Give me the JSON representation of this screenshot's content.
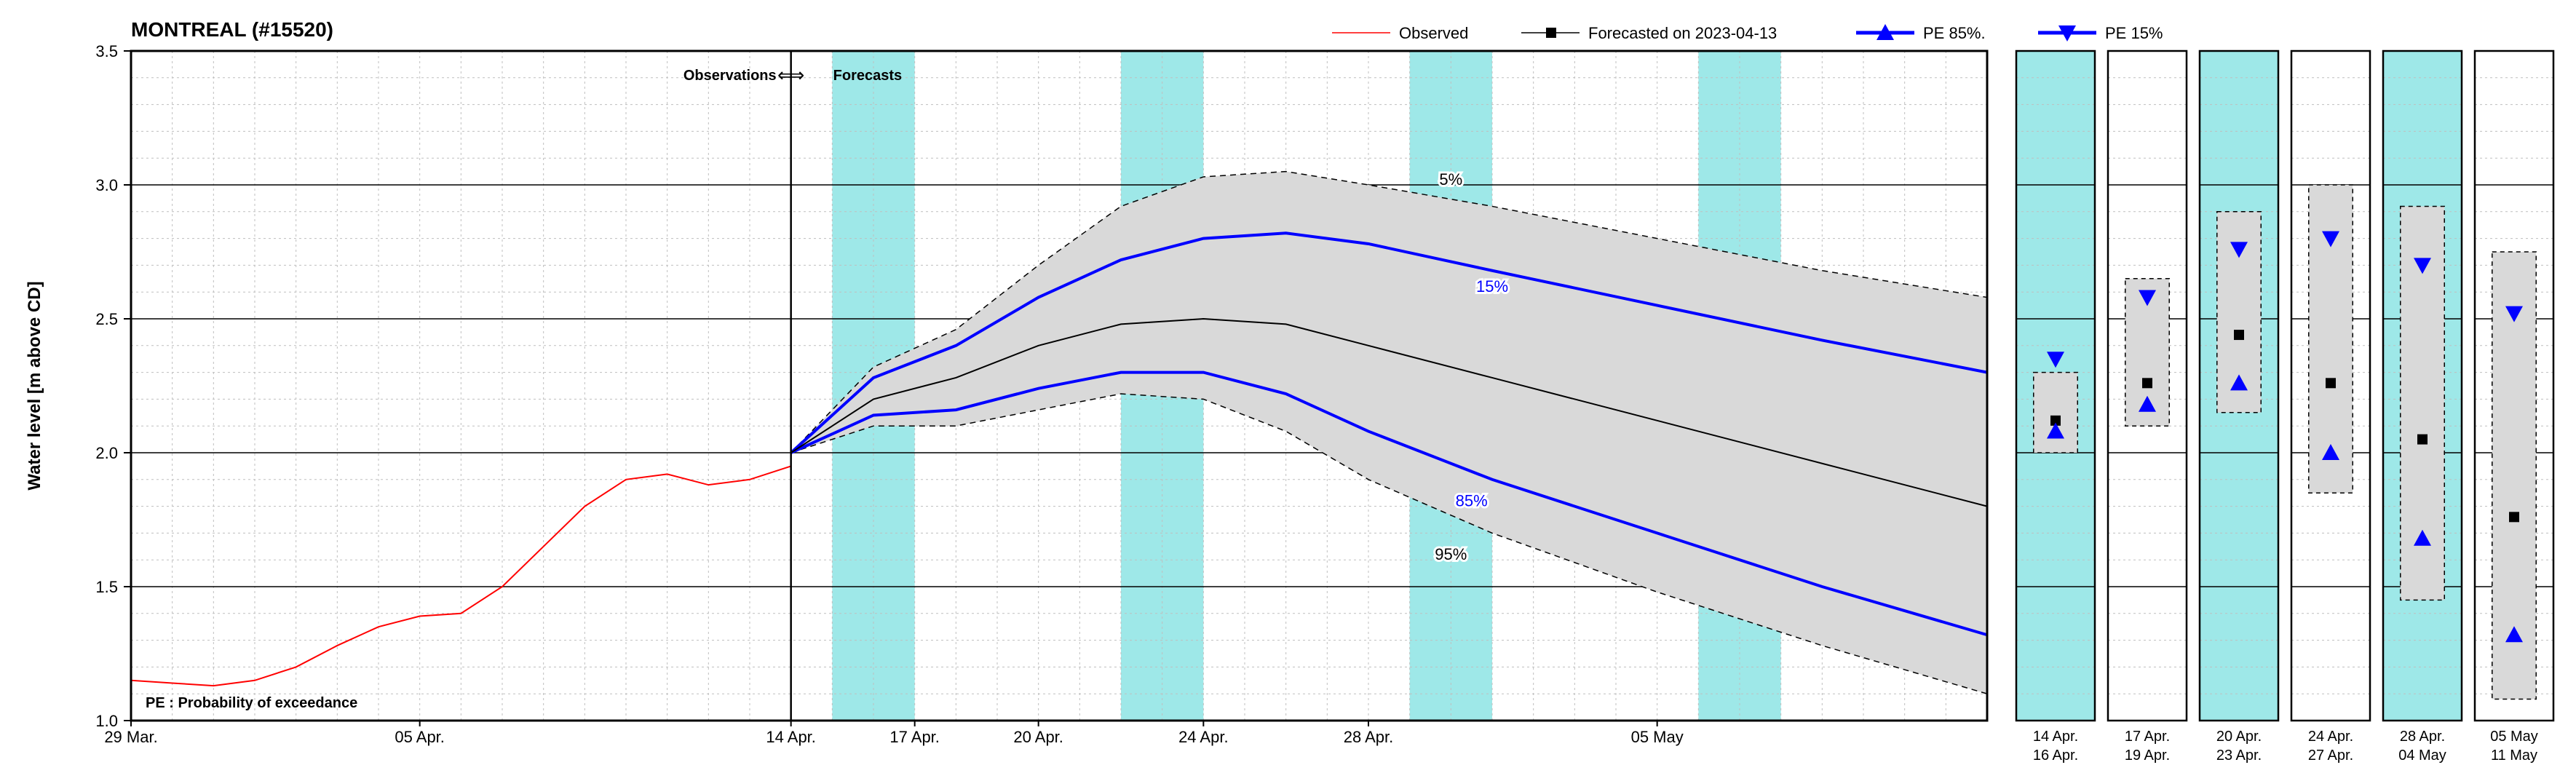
{
  "title": "MONTREAL (#15520)",
  "ylabel": "Water level [m above CD]",
  "ylim": [
    1.0,
    3.5
  ],
  "ytick_step": 0.5,
  "pe_note": "PE : Probability of exceedance",
  "obs_label": "Observations",
  "fc_label": "Forecasts",
  "legend": {
    "observed": "Observed",
    "forecasted": "Forecasted on 2023-04-13",
    "pe85": "PE 85%.",
    "pe15": "PE 15%"
  },
  "main_panel": {
    "x_day_span": 45,
    "obs_fc_split_day": 16,
    "xticks": [
      {
        "day": 0,
        "label": "29 Mar."
      },
      {
        "day": 7,
        "label": "05 Apr."
      },
      {
        "day": 16,
        "label": "14 Apr."
      },
      {
        "day": 19,
        "label": "17 Apr."
      },
      {
        "day": 22,
        "label": "20 Apr."
      },
      {
        "day": 26,
        "label": "24 Apr."
      },
      {
        "day": 30,
        "label": "28 Apr."
      },
      {
        "day": 37,
        "label": "05 May"
      }
    ],
    "weekend_bands": [
      {
        "start": 17,
        "end": 19
      },
      {
        "start": 24,
        "end": 26
      },
      {
        "start": 31,
        "end": 33
      },
      {
        "start": 38,
        "end": 40
      }
    ],
    "observed": [
      {
        "d": 0,
        "v": 1.15
      },
      {
        "d": 1,
        "v": 1.14
      },
      {
        "d": 2,
        "v": 1.13
      },
      {
        "d": 3,
        "v": 1.15
      },
      {
        "d": 4,
        "v": 1.2
      },
      {
        "d": 5,
        "v": 1.28
      },
      {
        "d": 6,
        "v": 1.35
      },
      {
        "d": 7,
        "v": 1.39
      },
      {
        "d": 8,
        "v": 1.4
      },
      {
        "d": 9,
        "v": 1.5
      },
      {
        "d": 10,
        "v": 1.65
      },
      {
        "d": 11,
        "v": 1.8
      },
      {
        "d": 12,
        "v": 1.9
      },
      {
        "d": 13,
        "v": 1.92
      },
      {
        "d": 14,
        "v": 1.88
      },
      {
        "d": 15,
        "v": 1.9
      },
      {
        "d": 16,
        "v": 1.95
      }
    ],
    "p5": [
      {
        "d": 16,
        "v": 2.0
      },
      {
        "d": 18,
        "v": 2.32
      },
      {
        "d": 20,
        "v": 2.46
      },
      {
        "d": 22,
        "v": 2.7
      },
      {
        "d": 24,
        "v": 2.92
      },
      {
        "d": 26,
        "v": 3.03
      },
      {
        "d": 28,
        "v": 3.05
      },
      {
        "d": 30,
        "v": 3.0
      },
      {
        "d": 33,
        "v": 2.92
      },
      {
        "d": 37,
        "v": 2.8
      },
      {
        "d": 41,
        "v": 2.68
      },
      {
        "d": 45,
        "v": 2.58
      }
    ],
    "p15": [
      {
        "d": 16,
        "v": 2.0
      },
      {
        "d": 18,
        "v": 2.28
      },
      {
        "d": 20,
        "v": 2.4
      },
      {
        "d": 22,
        "v": 2.58
      },
      {
        "d": 24,
        "v": 2.72
      },
      {
        "d": 26,
        "v": 2.8
      },
      {
        "d": 28,
        "v": 2.82
      },
      {
        "d": 30,
        "v": 2.78
      },
      {
        "d": 33,
        "v": 2.68
      },
      {
        "d": 37,
        "v": 2.55
      },
      {
        "d": 41,
        "v": 2.42
      },
      {
        "d": 45,
        "v": 2.3
      }
    ],
    "p50": [
      {
        "d": 16,
        "v": 2.0
      },
      {
        "d": 18,
        "v": 2.2
      },
      {
        "d": 20,
        "v": 2.28
      },
      {
        "d": 22,
        "v": 2.4
      },
      {
        "d": 24,
        "v": 2.48
      },
      {
        "d": 26,
        "v": 2.5
      },
      {
        "d": 28,
        "v": 2.48
      },
      {
        "d": 30,
        "v": 2.4
      },
      {
        "d": 33,
        "v": 2.28
      },
      {
        "d": 37,
        "v": 2.12
      },
      {
        "d": 41,
        "v": 1.96
      },
      {
        "d": 45,
        "v": 1.8
      }
    ],
    "p85": [
      {
        "d": 16,
        "v": 2.0
      },
      {
        "d": 18,
        "v": 2.14
      },
      {
        "d": 20,
        "v": 2.16
      },
      {
        "d": 22,
        "v": 2.24
      },
      {
        "d": 24,
        "v": 2.3
      },
      {
        "d": 26,
        "v": 2.3
      },
      {
        "d": 28,
        "v": 2.22
      },
      {
        "d": 30,
        "v": 2.08
      },
      {
        "d": 33,
        "v": 1.9
      },
      {
        "d": 37,
        "v": 1.7
      },
      {
        "d": 41,
        "v": 1.5
      },
      {
        "d": 45,
        "v": 1.32
      }
    ],
    "p95": [
      {
        "d": 16,
        "v": 2.0
      },
      {
        "d": 18,
        "v": 2.1
      },
      {
        "d": 20,
        "v": 2.1
      },
      {
        "d": 22,
        "v": 2.16
      },
      {
        "d": 24,
        "v": 2.22
      },
      {
        "d": 26,
        "v": 2.2
      },
      {
        "d": 28,
        "v": 2.08
      },
      {
        "d": 30,
        "v": 1.9
      },
      {
        "d": 33,
        "v": 1.7
      },
      {
        "d": 37,
        "v": 1.48
      },
      {
        "d": 41,
        "v": 1.28
      },
      {
        "d": 45,
        "v": 1.1
      }
    ],
    "band_labels": [
      {
        "text": "5%",
        "d": 32,
        "v": 3.0,
        "color": "#000000"
      },
      {
        "text": "15%",
        "d": 33,
        "v": 2.6,
        "color": "#0000ff"
      },
      {
        "text": "85%",
        "d": 32.5,
        "v": 1.8,
        "color": "#0000ff"
      },
      {
        "text": "95%",
        "d": 32,
        "v": 1.6,
        "color": "#000000"
      }
    ]
  },
  "colors": {
    "observed": "#ff0000",
    "forecast_median": "#000000",
    "pe_line": "#0000ff",
    "pe_band": "#d9d9d9",
    "weekend_band": "#9ee8e8",
    "grid_major": "#000000",
    "grid_minor": "#bfbfbf",
    "frame": "#000000"
  },
  "side_panels": [
    {
      "top": "14 Apr.",
      "bot": "16 Apr.",
      "p5": 2.3,
      "p15": 2.35,
      "p50": 2.12,
      "p85": 2.08,
      "p95": 2.0,
      "weekend": true
    },
    {
      "top": "17 Apr.",
      "bot": "19 Apr.",
      "p5": 2.65,
      "p15": 2.58,
      "p50": 2.26,
      "p85": 2.18,
      "p95": 2.1,
      "weekend": false
    },
    {
      "top": "20 Apr.",
      "bot": "23 Apr.",
      "p5": 2.9,
      "p15": 2.76,
      "p50": 2.44,
      "p85": 2.26,
      "p95": 2.15,
      "weekend": true
    },
    {
      "top": "24 Apr.",
      "bot": "27 Apr.",
      "p5": 3.0,
      "p15": 2.8,
      "p50": 2.26,
      "p85": 2.0,
      "p95": 1.85,
      "weekend": false
    },
    {
      "top": "28 Apr.",
      "bot": "04 May",
      "p5": 2.92,
      "p15": 2.7,
      "p50": 2.05,
      "p85": 1.68,
      "p95": 1.45,
      "weekend": true
    },
    {
      "top": "05 May",
      "bot": "11 May",
      "p5": 2.75,
      "p15": 2.52,
      "p50": 1.76,
      "p85": 1.32,
      "p95": 1.08,
      "weekend": false
    }
  ]
}
